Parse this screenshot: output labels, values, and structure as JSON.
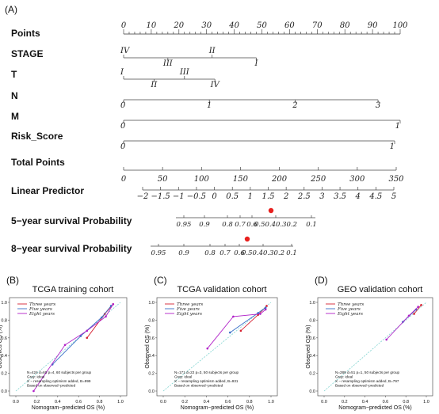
{
  "panel_a_tag": "(A)",
  "chart_data": [
    {
      "type": "nomogram",
      "rows": [
        {
          "name": "Points",
          "kind": "axis",
          "min": 0,
          "max": 100,
          "tick_labels": [
            "0",
            "10",
            "20",
            "30",
            "40",
            "50",
            "60",
            "70",
            "80",
            "90",
            "100"
          ]
        },
        {
          "name": "STAGE",
          "kind": "categorical",
          "levels": [
            {
              "label": "IV",
              "points": 0
            },
            {
              "label": "III",
              "points": 16
            },
            {
              "label": "II",
              "points": 32
            },
            {
              "label": "I",
              "points": 48
            }
          ]
        },
        {
          "name": "T",
          "kind": "categorical",
          "levels": [
            {
              "label": "I",
              "points": 0
            },
            {
              "label": "II",
              "points": 11
            },
            {
              "label": "III",
              "points": 22
            },
            {
              "label": "IV",
              "points": 33
            }
          ]
        },
        {
          "name": "N",
          "kind": "categorical",
          "levels": [
            {
              "label": "0",
              "points": 0
            },
            {
              "label": "1",
              "points": 31
            },
            {
              "label": "2",
              "points": 62
            },
            {
              "label": "3",
              "points": 92
            }
          ]
        },
        {
          "name": "M",
          "kind": "categorical",
          "levels": [
            {
              "label": "0",
              "points": 0
            },
            {
              "label": "1",
              "points": 100
            }
          ]
        },
        {
          "name": "Risk_Score",
          "kind": "categorical",
          "levels": [
            {
              "label": "0",
              "points": 0
            },
            {
              "label": "1",
              "points": 98
            }
          ]
        },
        {
          "name": "Total Points",
          "kind": "axis",
          "min": 0,
          "max": 350,
          "tick_labels": [
            "0",
            "50",
            "100",
            "150",
            "200",
            "250",
            "300",
            "350"
          ]
        },
        {
          "name": "Linear Predictor",
          "kind": "axis",
          "tick_labels": [
            "−2",
            "−1.5",
            "−1",
            "−0.5",
            "0",
            "0.5",
            "1",
            "1.5",
            "2",
            "2.5",
            "3",
            "3.5",
            "4",
            "4.5",
            "5"
          ]
        },
        {
          "name": "5−year survival Probability",
          "kind": "axis",
          "tick_labels": [
            "0.95",
            "0.9",
            "0.8",
            "0.7",
            "0.6",
            "0.50.40.30.2",
            "0.1"
          ]
        },
        {
          "name": "8−year survival Probability",
          "kind": "axis",
          "tick_labels": [
            "0.95",
            "0.9",
            "0.8",
            "0.7",
            "0.6",
            "0.50.40.30.2",
            "0.1"
          ]
        }
      ],
      "marker_color": "#e8201e"
    },
    {
      "type": "line",
      "tag": "(B)",
      "title": "TCGA training cohort",
      "xlabel": "Nomogram−predicted OS (%)",
      "ylabel": "Observed OS (%)",
      "xlim": [
        0.0,
        1.0
      ],
      "ylim": [
        0.0,
        1.0
      ],
      "ticks": [
        "0.0",
        "0.2",
        "0.4",
        "0.6",
        "0.8",
        "1.0"
      ],
      "legend": [
        {
          "name": "Three years",
          "color": "#d62030"
        },
        {
          "name": "Five years",
          "color": "#3a70c8"
        },
        {
          "name": "Eight years",
          "color": "#b020c8"
        }
      ],
      "series": [
        {
          "name": "Three years",
          "color": "#d62030",
          "points": [
            [
              0.68,
              0.6
            ],
            [
              0.85,
              0.87
            ],
            [
              0.93,
              0.98
            ]
          ]
        },
        {
          "name": "Five years",
          "color": "#3a70c8",
          "points": [
            [
              0.35,
              0.3
            ],
            [
              0.62,
              0.62
            ],
            [
              0.82,
              0.83
            ],
            [
              0.91,
              0.96
            ]
          ]
        },
        {
          "name": "Eight years",
          "color": "#b020c8",
          "points": [
            [
              0.17,
              0.0
            ],
            [
              0.47,
              0.52
            ],
            [
              0.68,
              0.68
            ],
            [
              0.86,
              0.84
            ],
            [
              0.93,
              0.98
            ]
          ]
        }
      ],
      "notes": [
        "N=424 d=60 p=4, 60 subjects per group",
        "Gray: ideal",
        "X − resampling optimism added, B=999",
        "Based on observed−predicted"
      ]
    },
    {
      "type": "line",
      "tag": "(C)",
      "title": "TCGA validation cohort",
      "xlabel": "Nomogram−predicted OS (%)",
      "ylabel": "Observed OS (%)",
      "xlim": [
        0.0,
        1.0
      ],
      "ylim": [
        0.0,
        1.0
      ],
      "ticks": [
        "0.0",
        "0.2",
        "0.4",
        "0.6",
        "0.8",
        "1.0"
      ],
      "legend": [
        {
          "name": "Three years",
          "color": "#d62030"
        },
        {
          "name": "Five years",
          "color": "#3a70c8"
        },
        {
          "name": "Eight years",
          "color": "#b020c8"
        }
      ],
      "series": [
        {
          "name": "Three years",
          "color": "#d62030",
          "points": [
            [
              0.72,
              0.68
            ],
            [
              0.88,
              0.86
            ],
            [
              0.96,
              0.96
            ]
          ]
        },
        {
          "name": "Five years",
          "color": "#3a70c8",
          "points": [
            [
              0.62,
              0.66
            ],
            [
              0.88,
              0.88
            ],
            [
              0.95,
              0.94
            ]
          ]
        },
        {
          "name": "Eight years",
          "color": "#b020c8",
          "points": [
            [
              0.41,
              0.48
            ],
            [
              0.65,
              0.84
            ],
            [
              0.9,
              0.87
            ],
            [
              0.95,
              0.92
            ]
          ]
        }
      ],
      "notes": [
        "N=171 d=22 p=3, 50 subjects per group",
        "Gray: ideal",
        "X − resampling optimism added, B=931",
        "Based on observed−predicted"
      ]
    },
    {
      "type": "line",
      "tag": "(D)",
      "title": "GEO validation cohort",
      "xlabel": "Nomogram−predicted OS (%)",
      "ylabel": "Observed OS (%)",
      "xlim": [
        0.0,
        1.0
      ],
      "ylim": [
        0.0,
        1.0
      ],
      "ticks": [
        "0.0",
        "0.2",
        "0.4",
        "0.6",
        "0.8",
        "1.0"
      ],
      "legend": [
        {
          "name": "Three years",
          "color": "#d62030"
        },
        {
          "name": "Five years",
          "color": "#3a70c8"
        },
        {
          "name": "Eight years",
          "color": "#b020c8"
        }
      ],
      "series": [
        {
          "name": "Three years",
          "color": "#d62030",
          "points": [
            [
              0.88,
              0.87
            ],
            [
              0.95,
              0.97
            ]
          ]
        },
        {
          "name": "Five years",
          "color": "#3a70c8",
          "points": [
            [
              0.77,
              0.78
            ],
            [
              0.9,
              0.92
            ]
          ]
        },
        {
          "name": "Eight years",
          "color": "#b020c8",
          "points": [
            [
              0.61,
              0.58
            ],
            [
              0.83,
              0.85
            ],
            [
              0.92,
              0.95
            ]
          ]
        }
      ],
      "notes": [
        "N=288 d=51 p=1, 50 subjects per group",
        "Gray: ideal",
        "X − resampling optimism added, B=797",
        "Based on observed−predicted"
      ]
    }
  ]
}
